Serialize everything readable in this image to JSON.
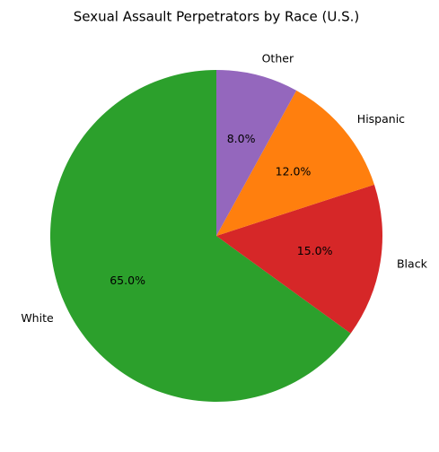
{
  "chart_data": {
    "type": "pie",
    "title": "Sexual Assault Perpetrators by Race (U.S.)",
    "categories": [
      "White",
      "Black",
      "Hispanic",
      "Other"
    ],
    "values": [
      65,
      15,
      12,
      8
    ],
    "value_labels": [
      "65.0%",
      "15.0%",
      "12.0%",
      "8.0%"
    ],
    "colors": [
      "#2ca02c",
      "#d62728",
      "#ff7f0e",
      "#9467bd"
    ]
  }
}
